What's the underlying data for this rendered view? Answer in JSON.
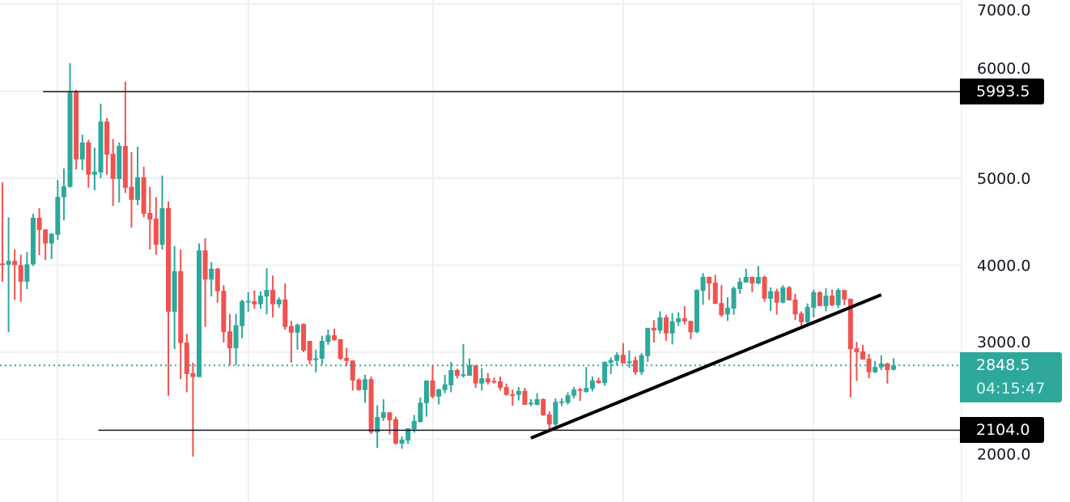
{
  "chart_data": {
    "type": "candlestick",
    "colors": {
      "up": "#2ea89b",
      "down": "#ef5350",
      "grid": "#f0f0f2",
      "line": "#131722"
    },
    "y_axis": {
      "ticks": [
        "7000.0",
        "6000.0",
        "5000.0",
        "4000.0",
        "3000.0",
        "2000.0"
      ],
      "tick_values": [
        7000,
        6000,
        5000,
        4000,
        3000,
        2000
      ]
    },
    "grid": true,
    "ohlc_fields": [
      "open",
      "high",
      "low",
      "close"
    ],
    "candles": [
      [
        4020,
        4950,
        3810,
        4010
      ],
      [
        4005,
        4550,
        3230,
        4050
      ],
      [
        4050,
        4180,
        3600,
        4000
      ],
      [
        4000,
        4120,
        3580,
        3810
      ],
      [
        3810,
        4150,
        3725,
        4010
      ],
      [
        4010,
        4590,
        3990,
        4545
      ],
      [
        4545,
        4655,
        4115,
        4405
      ],
      [
        4410,
        4415,
        4060,
        4250
      ],
      [
        4250,
        4370,
        4070,
        4360
      ],
      [
        4350,
        4980,
        4290,
        4785
      ],
      [
        4780,
        5110,
        4515,
        4905
      ],
      [
        4900,
        6320,
        4890,
        5985
      ],
      [
        5985,
        6015,
        5100,
        5215
      ],
      [
        5215,
        5500,
        5090,
        5410
      ],
      [
        5410,
        5440,
        4890,
        5040
      ],
      [
        5040,
        5350,
        4860,
        5075
      ],
      [
        5065,
        5855,
        5000,
        5650
      ],
      [
        5650,
        5690,
        5040,
        5270
      ],
      [
        5280,
        5450,
        4680,
        4990
      ],
      [
        4990,
        5410,
        4720,
        5370
      ],
      [
        5370,
        6107,
        4830,
        4890
      ],
      [
        4900,
        5300,
        4430,
        4750
      ],
      [
        4750,
        5360,
        4690,
        5010
      ],
      [
        5010,
        5130,
        4550,
        4590
      ],
      [
        4600,
        4900,
        4180,
        4525
      ],
      [
        4535,
        4780,
        4120,
        4235
      ],
      [
        4235,
        5030,
        4180,
        4655
      ],
      [
        4655,
        4730,
        2500,
        3465
      ],
      [
        3465,
        4220,
        3035,
        3930
      ],
      [
        3930,
        4180,
        2690,
        3105
      ],
      [
        3110,
        3210,
        2540,
        2750
      ],
      [
        2760,
        2880,
        1800,
        2715
      ],
      [
        2715,
        4250,
        2715,
        4170
      ],
      [
        4170,
        4310,
        3290,
        3835
      ],
      [
        3835,
        4035,
        3640,
        3960
      ],
      [
        3960,
        3970,
        3570,
        3700
      ],
      [
        3705,
        3770,
        3110,
        3230
      ],
      [
        3240,
        3440,
        2850,
        3045
      ],
      [
        3045,
        3440,
        2850,
        3310
      ],
      [
        3300,
        3605,
        3160,
        3585
      ],
      [
        3580,
        3690,
        3465,
        3590
      ],
      [
        3585,
        3710,
        3500,
        3550
      ],
      [
        3550,
        3700,
        3500,
        3650
      ],
      [
        3640,
        3965,
        3435,
        3715
      ],
      [
        3715,
        3880,
        3400,
        3550
      ],
      [
        3550,
        3630,
        3510,
        3605
      ],
      [
        3605,
        3790,
        3260,
        3290
      ],
      [
        3300,
        3360,
        2880,
        3225
      ],
      [
        3225,
        3330,
        3030,
        3315
      ],
      [
        3325,
        3330,
        3000,
        3020
      ],
      [
        3130,
        3130,
        2860,
        2905
      ],
      [
        2920,
        3030,
        2770,
        2930
      ],
      [
        2925,
        3190,
        2855,
        3130
      ],
      [
        3120,
        3260,
        3085,
        3195
      ],
      [
        3195,
        3270,
        3130,
        3140
      ],
      [
        3150,
        3150,
        2910,
        2925
      ],
      [
        2935,
        3050,
        2840,
        2900
      ],
      [
        2905,
        2905,
        2560,
        2675
      ],
      [
        2685,
        2700,
        2560,
        2565
      ],
      [
        2565,
        2740,
        2420,
        2690
      ],
      [
        2690,
        2720,
        2060,
        2080
      ],
      [
        2080,
        2390,
        1900,
        2255
      ],
      [
        2245,
        2460,
        2210,
        2310
      ],
      [
        2310,
        2310,
        2055,
        2220
      ],
      [
        2230,
        2260,
        1940,
        1950
      ],
      [
        1950,
        2030,
        1890,
        1995
      ],
      [
        1985,
        2125,
        1945,
        2125
      ],
      [
        2115,
        2280,
        2075,
        2210
      ],
      [
        2200,
        2480,
        2190,
        2420
      ],
      [
        2415,
        2675,
        2260,
        2675
      ],
      [
        2675,
        2850,
        2470,
        2490
      ],
      [
        2490,
        2580,
        2400,
        2575
      ],
      [
        2565,
        2740,
        2530,
        2630
      ],
      [
        2620,
        2890,
        2540,
        2795
      ],
      [
        2795,
        2810,
        2700,
        2730
      ],
      [
        2735,
        3095,
        2710,
        2745
      ],
      [
        2730,
        2930,
        2730,
        2850
      ],
      [
        2850,
        2850,
        2590,
        2640
      ],
      [
        2640,
        2820,
        2560,
        2700
      ],
      [
        2700,
        2760,
        2630,
        2655
      ],
      [
        2670,
        2710,
        2640,
        2665
      ],
      [
        2665,
        2720,
        2560,
        2590
      ],
      [
        2600,
        2640,
        2500,
        2510
      ],
      [
        2515,
        2570,
        2385,
        2510
      ],
      [
        2510,
        2600,
        2445,
        2555
      ],
      [
        2555,
        2590,
        2395,
        2395
      ],
      [
        2410,
        2460,
        2380,
        2420
      ],
      [
        2395,
        2530,
        2390,
        2460
      ],
      [
        2460,
        2470,
        2270,
        2275
      ],
      [
        2285,
        2320,
        2110,
        2170
      ],
      [
        2170,
        2470,
        2110,
        2430
      ],
      [
        2425,
        2470,
        2380,
        2435
      ],
      [
        2420,
        2540,
        2400,
        2505
      ],
      [
        2500,
        2600,
        2470,
        2570
      ],
      [
        2575,
        2590,
        2440,
        2565
      ],
      [
        2545,
        2830,
        2535,
        2590
      ],
      [
        2580,
        2720,
        2550,
        2675
      ],
      [
        2675,
        2710,
        2640,
        2645
      ],
      [
        2645,
        2890,
        2615,
        2890
      ],
      [
        2880,
        2940,
        2750,
        2910
      ],
      [
        2900,
        3000,
        2850,
        2970
      ],
      [
        2970,
        3105,
        2870,
        2870
      ],
      [
        2885,
        3020,
        2820,
        2895
      ],
      [
        2910,
        2950,
        2740,
        2770
      ],
      [
        2770,
        2990,
        2740,
        2965
      ],
      [
        2955,
        3280,
        2890,
        3280
      ],
      [
        3280,
        3370,
        3110,
        3250
      ],
      [
        3250,
        3470,
        3215,
        3400
      ],
      [
        3400,
        3430,
        3130,
        3215
      ],
      [
        3215,
        3450,
        3090,
        3355
      ],
      [
        3345,
        3460,
        3300,
        3390
      ],
      [
        3390,
        3530,
        3320,
        3355
      ],
      [
        3360,
        3360,
        3150,
        3230
      ],
      [
        3230,
        3720,
        3220,
        3715
      ],
      [
        3705,
        3910,
        3545,
        3865
      ],
      [
        3865,
        3870,
        3600,
        3790
      ],
      [
        3800,
        3890,
        3555,
        3555
      ],
      [
        3565,
        3770,
        3405,
        3425
      ],
      [
        3435,
        3630,
        3360,
        3510
      ],
      [
        3500,
        3755,
        3430,
        3735
      ],
      [
        3725,
        3855,
        3670,
        3810
      ],
      [
        3800,
        3960,
        3800,
        3865
      ],
      [
        3865,
        3870,
        3690,
        3790
      ],
      [
        3790,
        3990,
        3780,
        3865
      ],
      [
        3865,
        3880,
        3580,
        3615
      ],
      [
        3615,
        3745,
        3475,
        3700
      ],
      [
        3700,
        3730,
        3430,
        3570
      ],
      [
        3570,
        3770,
        3560,
        3745
      ],
      [
        3745,
        3760,
        3595,
        3595
      ],
      [
        3605,
        3670,
        3370,
        3435
      ],
      [
        3445,
        3470,
        3300,
        3345
      ],
      [
        3345,
        3560,
        3300,
        3520
      ],
      [
        3510,
        3720,
        3400,
        3690
      ],
      [
        3690,
        3700,
        3530,
        3530
      ],
      [
        3530,
        3735,
        3470,
        3650
      ],
      [
        3650,
        3720,
        3530,
        3540
      ],
      [
        3540,
        3735,
        3510,
        3715
      ],
      [
        3715,
        3715,
        3540,
        3605
      ],
      [
        3615,
        3615,
        2480,
        3035
      ],
      [
        3045,
        3120,
        2670,
        3000
      ],
      [
        3010,
        3085,
        2915,
        2915
      ],
      [
        2925,
        2980,
        2700,
        2770
      ],
      [
        2770,
        2900,
        2760,
        2830
      ],
      [
        2825,
        2965,
        2795,
        2870
      ],
      [
        2870,
        2880,
        2640,
        2795
      ],
      [
        2800,
        2930,
        2790,
        2848.5
      ]
    ],
    "drawings": {
      "horizontal_lines": [
        {
          "price": 5993.5,
          "start_index": 7
        },
        {
          "price": 2104.0,
          "start_index": 16
        }
      ],
      "trend_line": {
        "start_index": 86,
        "start_price": 2014,
        "end_index": 143,
        "end_price": 3660
      }
    },
    "last_price": 2848.5
  },
  "price_scale": {
    "level_high_label": "5993.5",
    "level_low_label": "2104.0",
    "last_price_label": "2848.5",
    "countdown": "04:15:47"
  }
}
